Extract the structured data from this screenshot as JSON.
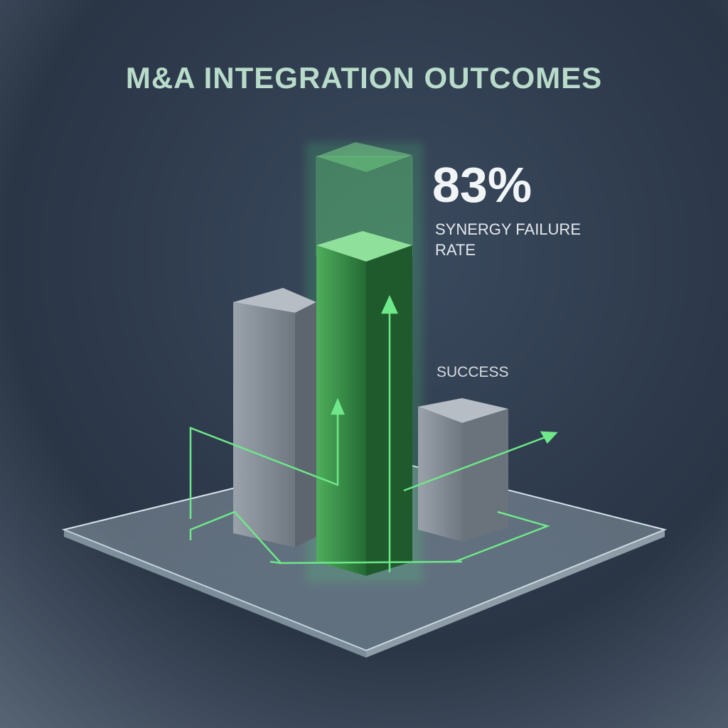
{
  "header": {
    "title": "M&A INTEGRATION OUTCOMES"
  },
  "callout": {
    "value": "83%",
    "label": "SYNERGY FAILURE RATE"
  },
  "success_label": "SUCCESS"
}
